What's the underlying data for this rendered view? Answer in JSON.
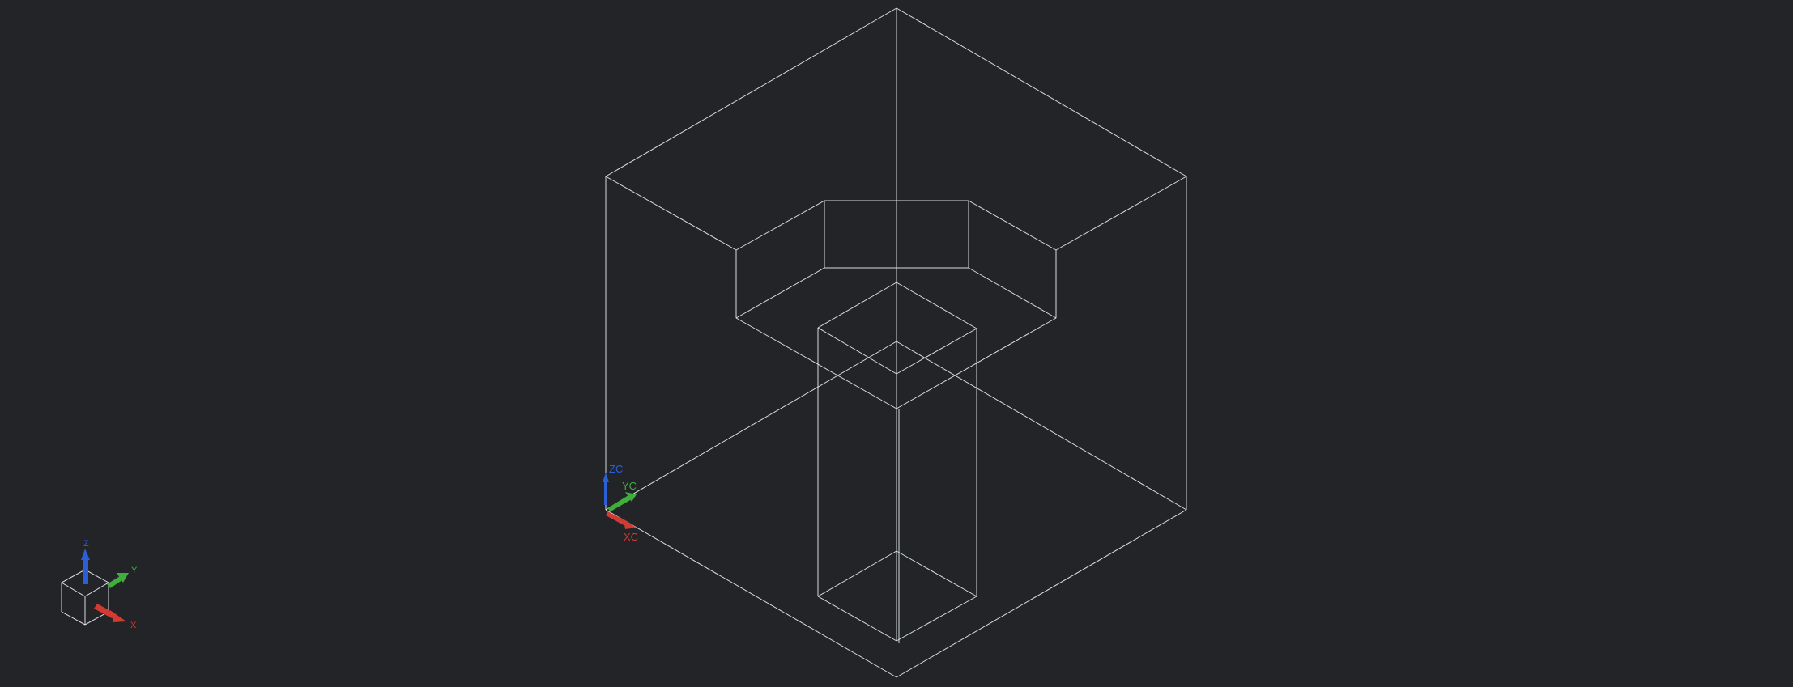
{
  "viewport": {
    "background": "#232427",
    "edge_color": "#e6ecef",
    "render_style": "wireframe",
    "view": "isometric"
  },
  "wcs_triad": {
    "x_label": "XC",
    "y_label": "YC",
    "z_label": "ZC",
    "x_color": "#d23a32",
    "y_color": "#3fae3a",
    "z_color": "#2a5fd6"
  },
  "view_triad": {
    "x_label": "X",
    "y_label": "Y",
    "z_label": "Z",
    "x_color": "#d23a32",
    "y_color": "#3fae3a",
    "z_color": "#2a5fd6",
    "icon": "view-cube-icon"
  }
}
